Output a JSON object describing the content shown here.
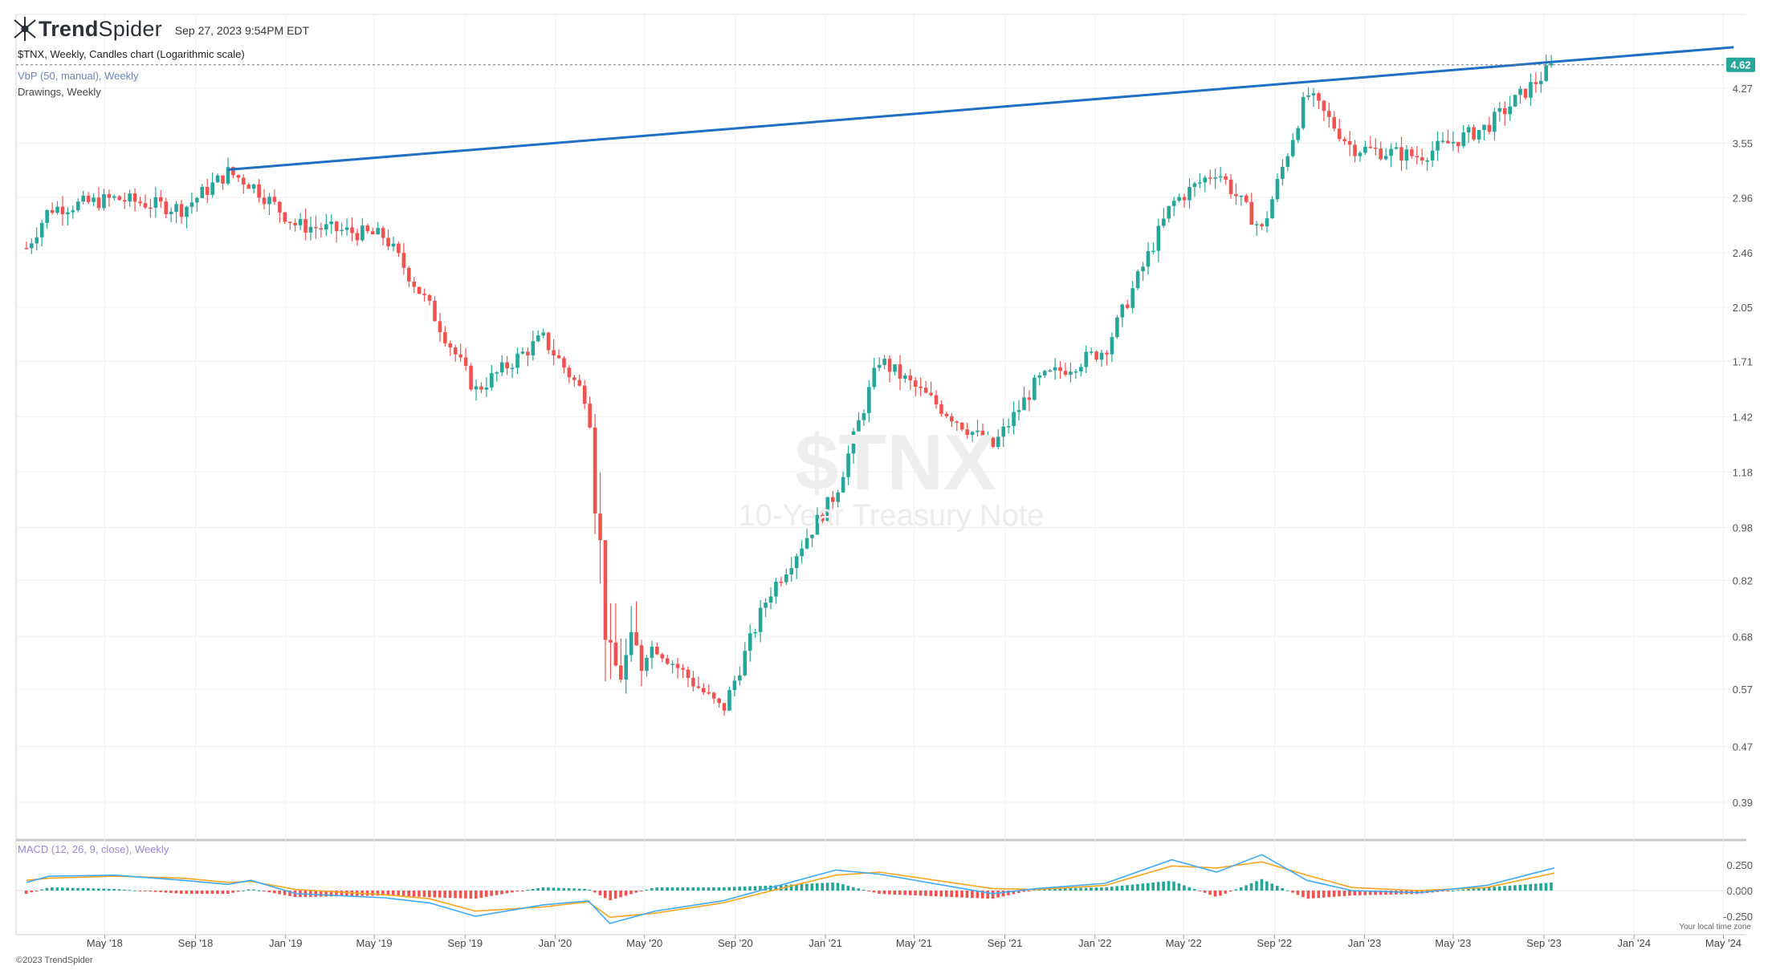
{
  "header": {
    "logo_name": "trendspider-logo",
    "logo_text_bold": "Trend",
    "logo_text_light": "Spider",
    "timestamp": "Sep 27, 2023 9:54PM EDT"
  },
  "legends": {
    "chart": "$TNX, Weekly, Candles chart (Logarithmic scale)",
    "vbp": "VbP (50, manual), Weekly",
    "drawings": "Drawings, Weekly",
    "macd": "MACD (12, 26, 9, close), Weekly"
  },
  "watermark": {
    "symbol": "$TNX",
    "description": "10-Year Treasury Note"
  },
  "footer": {
    "copyright": "©2023 TrendSpider",
    "timezone_note": "Your local time zone"
  },
  "colors": {
    "up": "#26a69a",
    "down": "#ef5350",
    "trendline": "#1f6fc4",
    "macd_line": "#3fa9f5",
    "signal_line": "#f5a623",
    "price_badge": "#26a69a"
  },
  "chart_data": [
    {
      "type": "candlestick",
      "title": "$TNX, Weekly, Candles chart (Logarithmic scale)",
      "scale": "log",
      "y_tick_labels": [
        "4.27",
        "3.55",
        "2.96",
        "2.46",
        "2.05",
        "1.71",
        "1.42",
        "1.18",
        "0.98",
        "0.82",
        "0.68",
        "0.57",
        "0.47",
        "0.39"
      ],
      "x_tick_labels": [
        "May '18",
        "Sep '18",
        "Jan '19",
        "May '19",
        "Sep '19",
        "Jan '20",
        "May '20",
        "Sep '20",
        "Jan '21",
        "May '21",
        "Sep '21",
        "Jan '22",
        "May '22",
        "Sep '22",
        "Jan '23",
        "May '23",
        "Sep '23",
        "Jan '24",
        "May '24"
      ],
      "last_price": "4.62",
      "approx_weekly_close": [
        {
          "date": "2018-01",
          "value": 2.5
        },
        {
          "date": "2018-02",
          "value": 2.85
        },
        {
          "date": "2018-05",
          "value": 2.95
        },
        {
          "date": "2018-08",
          "value": 2.85
        },
        {
          "date": "2018-10",
          "value": 3.22
        },
        {
          "date": "2018-11",
          "value": 3.1
        },
        {
          "date": "2019-01",
          "value": 2.7
        },
        {
          "date": "2019-05",
          "value": 2.6
        },
        {
          "date": "2019-07",
          "value": 2.05
        },
        {
          "date": "2019-09",
          "value": 1.55
        },
        {
          "date": "2019-12",
          "value": 1.85
        },
        {
          "date": "2020-02",
          "value": 1.5
        },
        {
          "date": "2020-03",
          "value": 0.6
        },
        {
          "date": "2020-05",
          "value": 0.66
        },
        {
          "date": "2020-08",
          "value": 0.53
        },
        {
          "date": "2020-10",
          "value": 0.78
        },
        {
          "date": "2021-01",
          "value": 1.1
        },
        {
          "date": "2021-03",
          "value": 1.72
        },
        {
          "date": "2021-08",
          "value": 1.28
        },
        {
          "date": "2021-10",
          "value": 1.6
        },
        {
          "date": "2022-01",
          "value": 1.78
        },
        {
          "date": "2022-04",
          "value": 2.9
        },
        {
          "date": "2022-06",
          "value": 3.25
        },
        {
          "date": "2022-08",
          "value": 2.65
        },
        {
          "date": "2022-10",
          "value": 4.2
        },
        {
          "date": "2022-12",
          "value": 3.5
        },
        {
          "date": "2023-03",
          "value": 3.4
        },
        {
          "date": "2023-06",
          "value": 3.75
        },
        {
          "date": "2023-09",
          "value": 4.62
        }
      ],
      "trendline": {
        "start": {
          "date": "2018-10",
          "value": 3.25
        },
        "end": {
          "date": "2024-05",
          "value": 4.9
        }
      }
    },
    {
      "type": "line",
      "title": "MACD (12, 26, 9, close), Weekly",
      "y_tick_labels": [
        "0.250",
        "0.000",
        "-0.250"
      ],
      "series": [
        {
          "values": [
            0.08,
            0.14,
            0.15,
            0.1,
            0.06,
            0.1,
            -0.03,
            -0.07,
            -0.12,
            -0.25,
            -0.14,
            -0.1,
            -0.32,
            -0.2,
            -0.1,
            0.02,
            0.2,
            0.16,
            -0.03,
            0.02,
            0.07,
            0.3,
            0.18,
            0.35,
            0.1,
            0.0,
            -0.02,
            0.05,
            0.22
          ]
        },
        {
          "values": [
            0.1,
            0.12,
            0.14,
            0.12,
            0.08,
            0.09,
            0.01,
            -0.04,
            -0.08,
            -0.2,
            -0.16,
            -0.11,
            -0.26,
            -0.22,
            -0.12,
            -0.01,
            0.15,
            0.18,
            0.02,
            0.01,
            0.05,
            0.24,
            0.22,
            0.28,
            0.15,
            0.03,
            0.0,
            0.03,
            0.17
          ]
        }
      ]
    }
  ]
}
